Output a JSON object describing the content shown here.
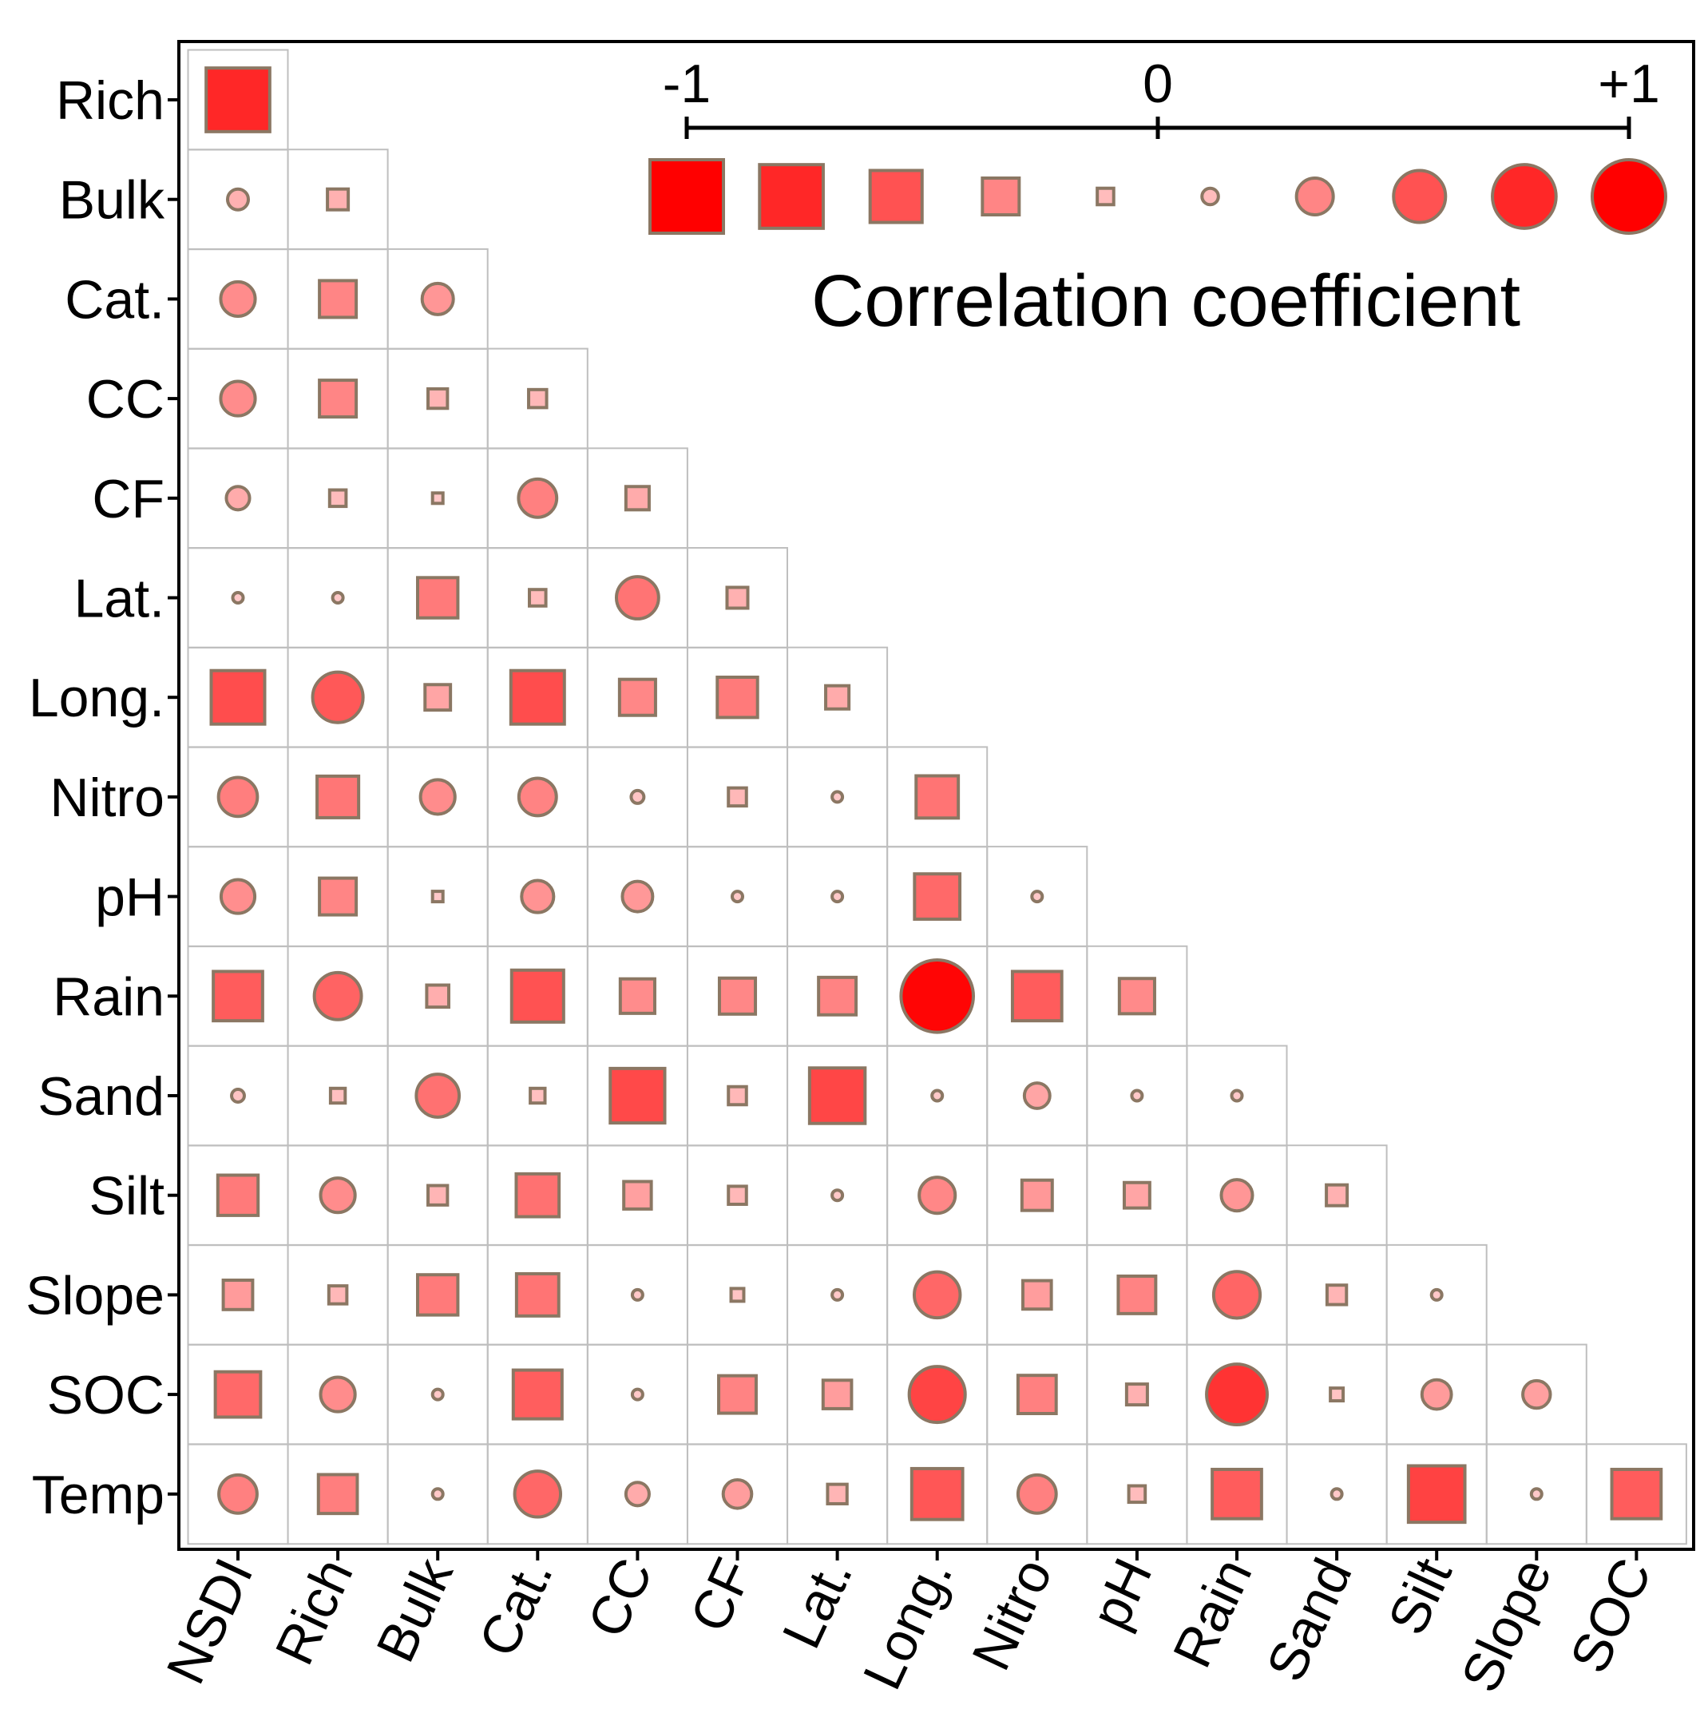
{
  "chart_data": {
    "type": "heatmap",
    "subtype": "lower-triangular correlogram (square = negative, circle = positive)",
    "title": "",
    "legend": {
      "title": "Correlation coefficient",
      "scale_labels": [
        "-1",
        "0",
        "+1"
      ],
      "scale_values": [
        -1,
        0,
        1
      ],
      "sample_values": [
        -1.0,
        -0.75,
        -0.5,
        -0.25,
        -0.05,
        0.05,
        0.25,
        0.5,
        0.75,
        1.0
      ],
      "placement": "top-right"
    },
    "colors": {
      "negative_shape": "square",
      "positive_shape": "circle",
      "marker_stroke": "#8b7763",
      "grid_line": "#bfbfbf",
      "axis_line": "#000000",
      "strong_color": "#ff0000",
      "weak_color": "#ffd6d6"
    },
    "row_labels": [
      "Rich",
      "Bulk",
      "Cat.",
      "CC",
      "CF",
      "Lat.",
      "Long.",
      "Nitro",
      "pH",
      "Rain",
      "Sand",
      "Silt",
      "Slope",
      "SOC",
      "Temp"
    ],
    "col_labels": [
      "NSDI",
      "Rich",
      "Bulk",
      "Cat.",
      "CC",
      "CF",
      "Lat.",
      "Long.",
      "Nitro",
      "pH",
      "Rain",
      "Sand",
      "Silt",
      "Slope",
      "SOC"
    ],
    "matrix": [
      [
        -0.75
      ],
      [
        0.08,
        -0.08
      ],
      [
        0.22,
        -0.25,
        0.18
      ],
      [
        0.22,
        -0.25,
        -0.07,
        -0.06
      ],
      [
        0.1,
        -0.05,
        -0.02,
        0.27,
        -0.1
      ],
      [
        0.02,
        0.02,
        -0.3,
        -0.05,
        0.33,
        -0.08
      ],
      [
        -0.53,
        0.47,
        -0.12,
        -0.53,
        -0.24,
        -0.3,
        -0.1
      ],
      [
        0.28,
        -0.32,
        0.22,
        0.26,
        0.03,
        -0.06,
        0.02,
        -0.33
      ],
      [
        0.21,
        -0.25,
        -0.02,
        0.19,
        0.17,
        0.02,
        0.02,
        -0.38,
        0.02
      ],
      [
        -0.45,
        0.41,
        -0.09,
        -0.5,
        -0.22,
        -0.24,
        -0.26,
        0.97,
        -0.45,
        -0.23
      ],
      [
        0.03,
        -0.04,
        0.34,
        -0.04,
        -0.55,
        -0.06,
        -0.57,
        0.02,
        0.12,
        0.02,
        0.02
      ],
      [
        -0.3,
        0.22,
        -0.07,
        -0.34,
        -0.14,
        -0.06,
        0.02,
        0.24,
        -0.17,
        -0.12,
        0.18,
        -0.08
      ],
      [
        -0.16,
        -0.06,
        -0.3,
        -0.33,
        0.02,
        -0.03,
        0.02,
        0.39,
        -0.15,
        -0.26,
        0.4,
        -0.07,
        0.02
      ],
      [
        -0.38,
        0.22,
        0.02,
        -0.44,
        0.02,
        -0.26,
        -0.15,
        0.58,
        -0.27,
        -0.08,
        0.68,
        -0.03,
        0.16,
        0.14
      ],
      [
        0.27,
        -0.28,
        0.02,
        0.39,
        0.1,
        0.15,
        -0.07,
        -0.48,
        0.27,
        -0.05,
        -0.45,
        0.02,
        -0.59,
        0.02,
        -0.45
      ]
    ]
  }
}
